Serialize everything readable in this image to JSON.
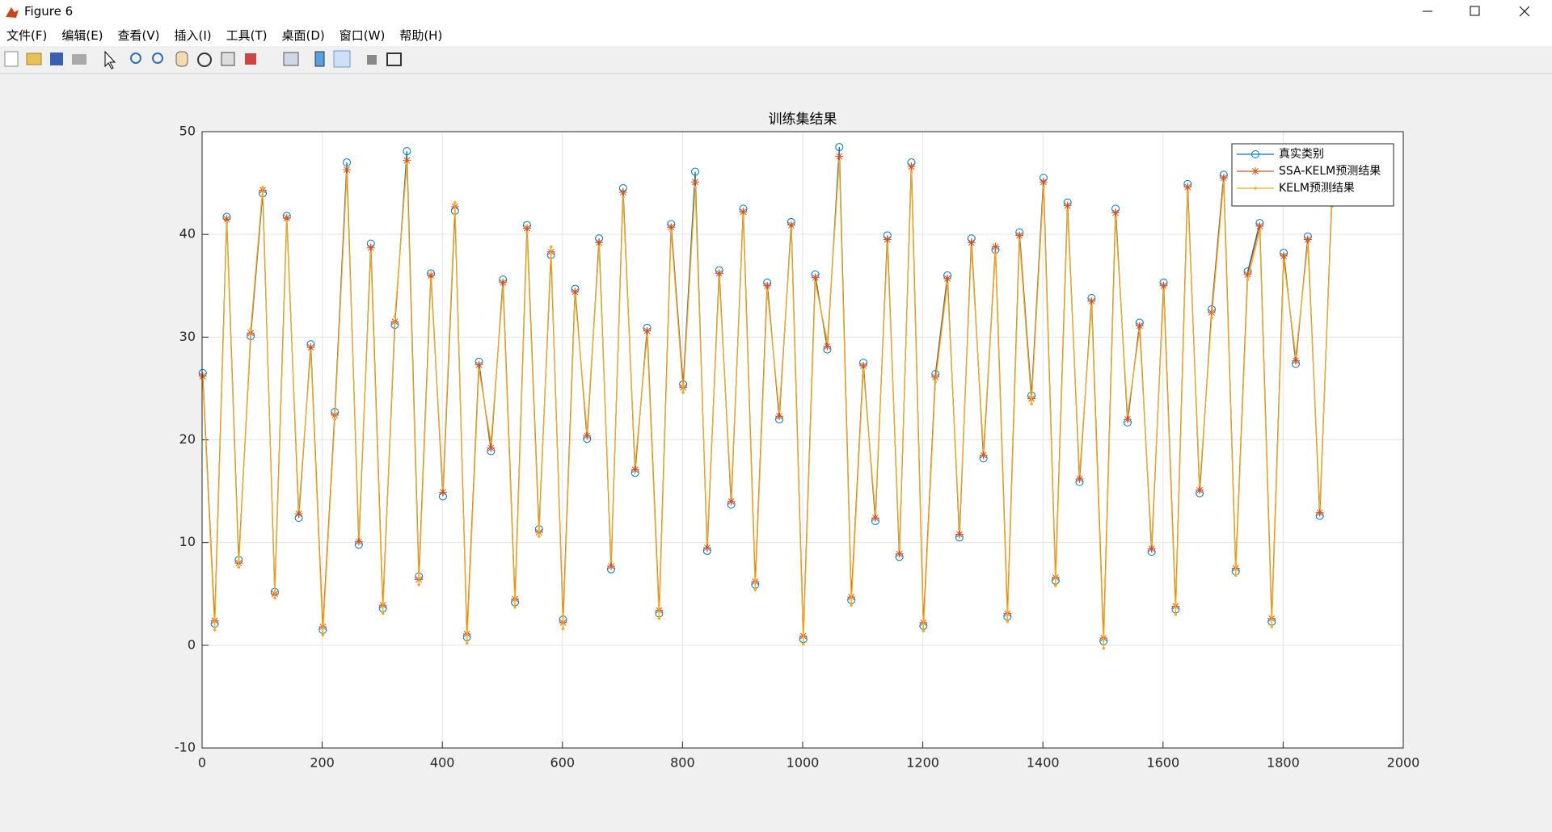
{
  "window": {
    "title": "Figure 6",
    "menu": [
      "文件(F)",
      "编辑(E)",
      "查看(V)",
      "插入(I)",
      "工具(T)",
      "桌面(D)",
      "窗口(W)",
      "帮助(H)"
    ]
  },
  "chart_data": {
    "type": "line",
    "title": "训练集结果",
    "x": [
      1,
      21,
      41,
      61,
      81,
      101,
      121,
      141,
      161,
      181,
      201,
      221,
      241,
      261,
      281,
      301,
      321,
      341,
      361,
      381,
      401,
      421,
      441,
      461,
      481,
      501,
      521,
      541,
      561,
      581,
      601,
      621,
      641,
      661,
      681,
      701,
      721,
      741,
      761,
      781,
      801,
      821,
      841,
      861,
      881,
      901,
      921,
      941,
      961,
      981,
      1001,
      1021,
      1041,
      1061,
      1081,
      1101,
      1121,
      1141,
      1161,
      1181,
      1201,
      1221,
      1241,
      1261,
      1281,
      1301,
      1321,
      1341,
      1361,
      1381,
      1401,
      1421,
      1441,
      1461,
      1481,
      1501,
      1521,
      1541,
      1561,
      1581,
      1601,
      1621,
      1641,
      1661,
      1681,
      1701,
      1721,
      1741,
      1761,
      1781,
      1801,
      1821,
      1841,
      1861,
      1881
    ],
    "series": [
      {
        "name": "真实类别",
        "color": "#0072BD",
        "marker": "o",
        "values": [
          26.5,
          2.1,
          41.7,
          8.3,
          30.1,
          44.0,
          5.2,
          41.8,
          12.4,
          29.3,
          1.5,
          22.7,
          47.0,
          9.8,
          39.1,
          3.6,
          31.2,
          48.1,
          6.7,
          36.2,
          14.5,
          42.3,
          0.8,
          27.6,
          18.9,
          35.6,
          4.2,
          40.9,
          11.3,
          38.0,
          2.5,
          34.7,
          20.1,
          39.6,
          7.4,
          44.5,
          16.8,
          30.9,
          3.1,
          41.0,
          25.4,
          46.1,
          9.2,
          36.5,
          13.7,
          42.5,
          5.9,
          35.3,
          22.0,
          41.2,
          0.6,
          36.1,
          28.8,
          48.5,
          4.4,
          27.5,
          12.1,
          39.9,
          8.6,
          47.0,
          1.9,
          26.4,
          36.0,
          10.5,
          39.6,
          18.2,
          38.5,
          2.8,
          40.2,
          24.3,
          45.5,
          6.3,
          43.1,
          15.9,
          33.8,
          0.4,
          42.5,
          21.7,
          31.4,
          9.1,
          35.3,
          3.5,
          44.9,
          14.8,
          32.7,
          45.8,
          7.2,
          36.4,
          41.1,
          2.3,
          38.2,
          27.4,
          39.8,
          12.6,
          43.5
        ]
      },
      {
        "name": "SSA-KELM预测结果",
        "color": "#D95319",
        "marker": "*",
        "values": [
          26.2,
          2.4,
          41.5,
          8.0,
          30.4,
          44.3,
          5.0,
          41.6,
          12.8,
          29.0,
          1.8,
          22.4,
          46.3,
          10.1,
          38.7,
          3.9,
          31.5,
          47.2,
          6.4,
          36.0,
          14.9,
          42.7,
          1.1,
          27.3,
          19.2,
          35.3,
          4.5,
          40.6,
          11.0,
          38.3,
          2.2,
          34.4,
          20.4,
          39.2,
          7.7,
          44.1,
          17.1,
          30.6,
          3.4,
          40.7,
          25.1,
          45.1,
          9.5,
          36.2,
          14.0,
          42.2,
          6.2,
          35.0,
          22.3,
          40.9,
          0.9,
          35.8,
          29.1,
          47.6,
          4.7,
          27.2,
          12.4,
          39.5,
          8.9,
          46.6,
          2.2,
          26.1,
          35.7,
          10.8,
          39.2,
          18.5,
          38.8,
          3.1,
          39.9,
          24.0,
          45.1,
          6.6,
          42.8,
          16.2,
          33.5,
          0.7,
          42.1,
          22.0,
          31.1,
          9.4,
          35.0,
          3.8,
          44.6,
          15.1,
          32.4,
          45.5,
          7.5,
          36.1,
          40.8,
          2.6,
          37.9,
          27.7,
          39.5,
          12.9,
          43.2
        ]
      },
      {
        "name": "KELM预测结果",
        "color": "#EDB120",
        "marker": ".",
        "values": [
          25.9,
          1.5,
          41.2,
          7.6,
          30.8,
          44.6,
          4.6,
          41.3,
          13.2,
          28.6,
          1.0,
          22.0,
          45.8,
          10.6,
          38.2,
          3.1,
          32.0,
          46.9,
          5.9,
          35.6,
          15.3,
          43.1,
          0.2,
          26.8,
          19.8,
          34.8,
          3.7,
          40.2,
          10.6,
          38.8,
          1.6,
          34.0,
          20.9,
          38.8,
          8.2,
          43.6,
          17.6,
          30.1,
          2.6,
          40.3,
          24.6,
          44.6,
          10.0,
          35.7,
          14.5,
          41.8,
          5.4,
          34.5,
          22.8,
          40.5,
          0.1,
          35.3,
          29.6,
          47.1,
          3.9,
          26.8,
          12.9,
          39.0,
          9.4,
          46.1,
          1.4,
          25.6,
          35.2,
          11.3,
          38.7,
          19.0,
          38.1,
          2.3,
          39.4,
          23.5,
          44.6,
          5.8,
          42.3,
          16.7,
          33.0,
          -0.3,
          41.6,
          22.5,
          30.6,
          9.9,
          34.5,
          3.0,
          44.1,
          15.6,
          31.9,
          45.0,
          6.8,
          35.6,
          40.3,
          1.8,
          37.4,
          28.2,
          39.0,
          13.4,
          42.7
        ]
      }
    ],
    "xlim": [
      0,
      2000
    ],
    "xticks": [
      0,
      200,
      400,
      600,
      800,
      1000,
      1200,
      1400,
      1600,
      1800,
      2000
    ],
    "ylim": [
      -10,
      50
    ],
    "yticks": [
      -10,
      0,
      10,
      20,
      30,
      40,
      50
    ],
    "grid": true,
    "legend": "northeast"
  }
}
